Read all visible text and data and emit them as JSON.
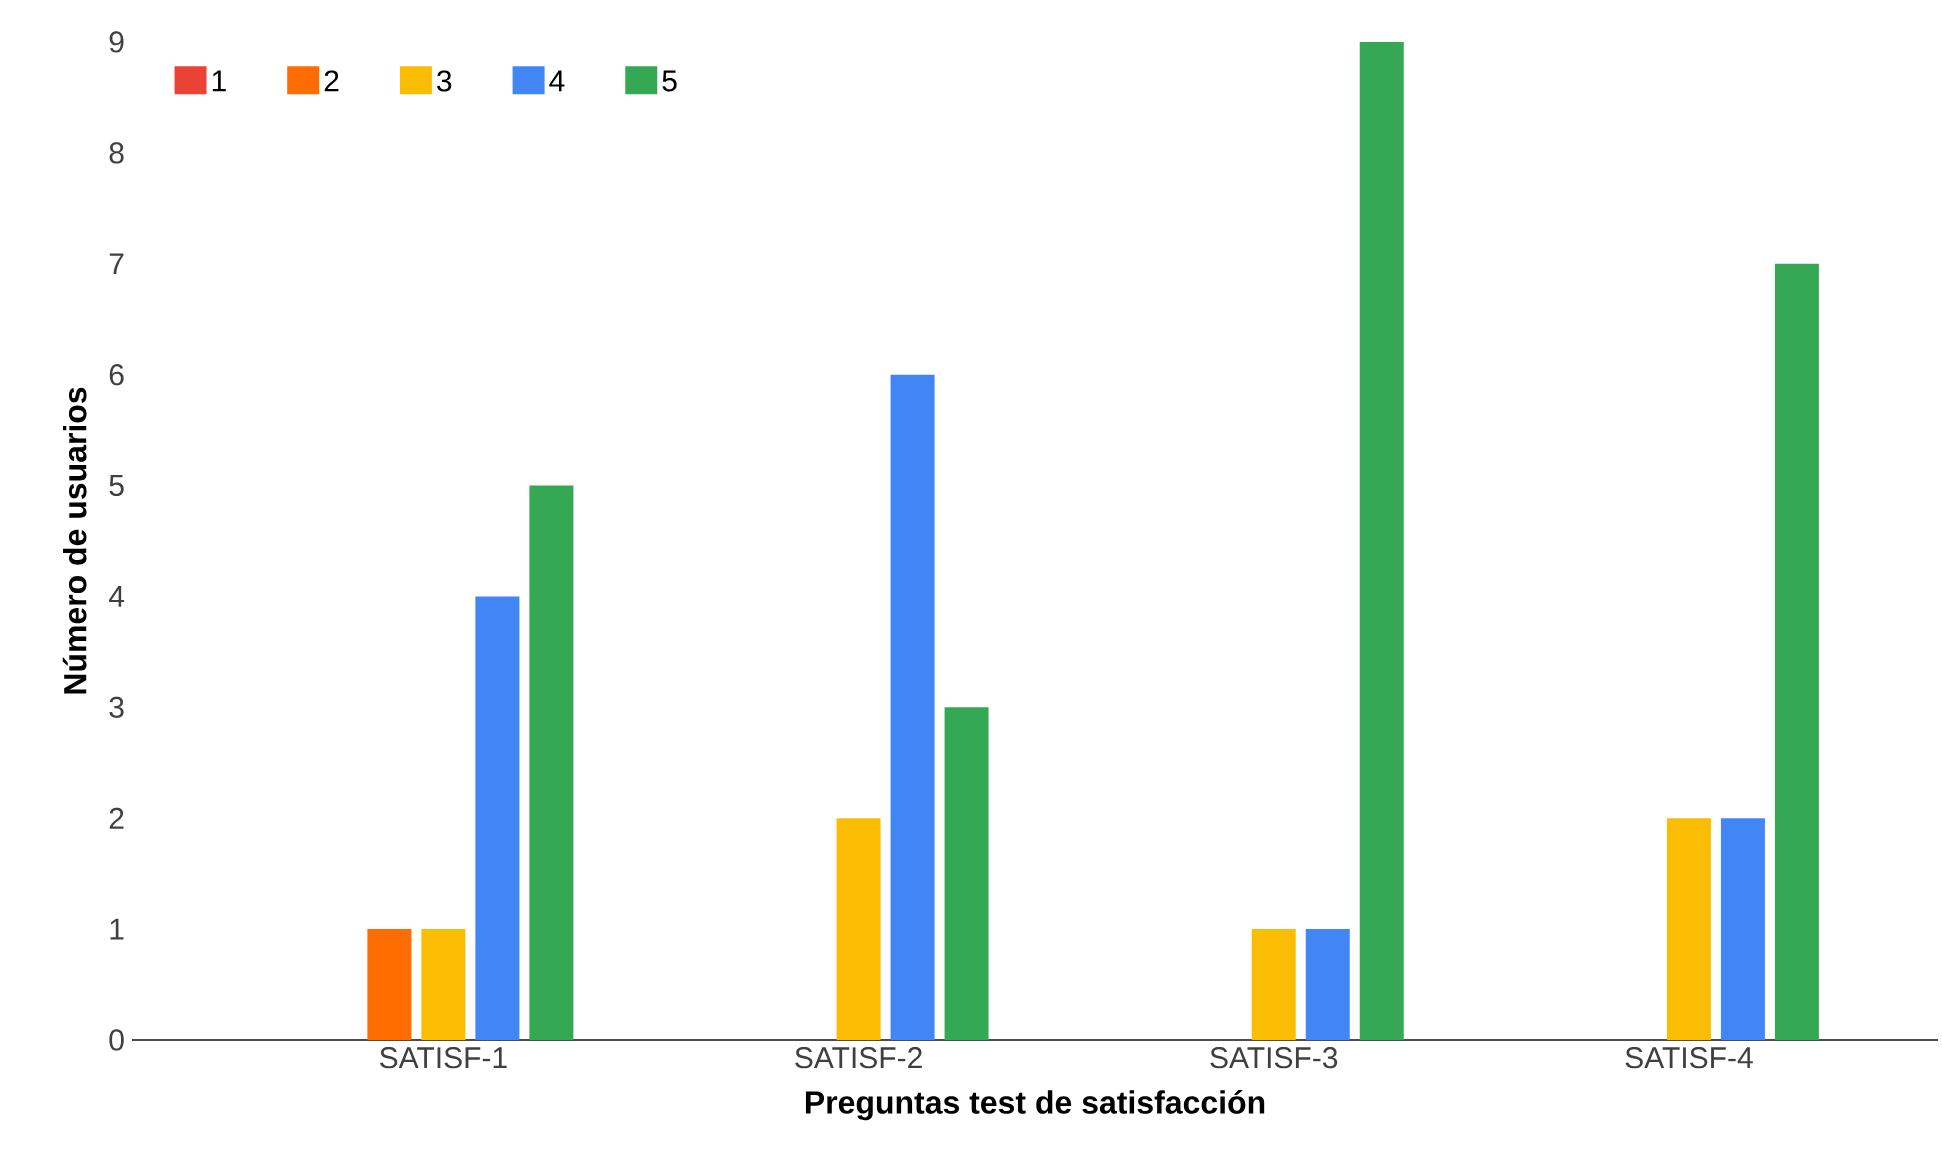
{
  "chart_data": {
    "type": "bar",
    "xlabel": "Preguntas test de satisfacción",
    "ylabel": "Número de usuarios",
    "categories": [
      "SATISF-1",
      "SATISF-2",
      "SATISF-3",
      "SATISF-4"
    ],
    "series": [
      {
        "name": "1",
        "color": "#ea4335",
        "values": [
          0,
          0,
          0,
          0
        ]
      },
      {
        "name": "2",
        "color": "#ff6d01",
        "values": [
          1,
          0,
          0,
          0
        ]
      },
      {
        "name": "3",
        "color": "#fbbc04",
        "values": [
          1,
          2,
          1,
          2
        ]
      },
      {
        "name": "4",
        "color": "#4285f4",
        "values": [
          4,
          6,
          1,
          2
        ]
      },
      {
        "name": "5",
        "color": "#34a853",
        "values": [
          5,
          3,
          9,
          7
        ]
      }
    ],
    "ylim": [
      0,
      9
    ],
    "yticks": [
      0,
      1,
      2,
      3,
      4,
      5,
      6,
      7,
      8,
      9
    ],
    "legend": "top left"
  }
}
